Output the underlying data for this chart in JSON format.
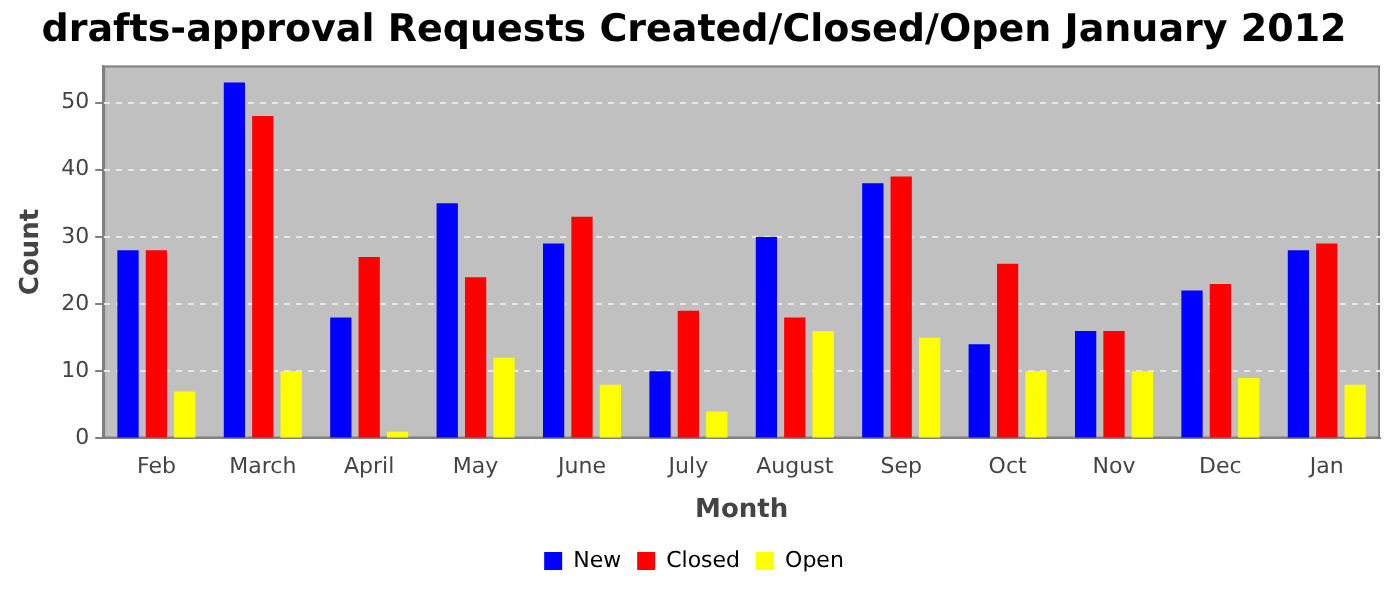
{
  "chart_data": {
    "type": "bar",
    "title": "drafts-approval Requests Created/Closed/Open January 2012",
    "xlabel": "Month",
    "ylabel": "Count",
    "categories": [
      "Feb",
      "March",
      "April",
      "May",
      "June",
      "July",
      "August",
      "Sep",
      "Oct",
      "Nov",
      "Dec",
      "Jan"
    ],
    "series": [
      {
        "name": "New",
        "color": "#0000ff",
        "values": [
          28,
          53,
          18,
          35,
          29,
          10,
          30,
          38,
          14,
          16,
          22,
          28
        ]
      },
      {
        "name": "Closed",
        "color": "#ff0000",
        "values": [
          28,
          48,
          27,
          24,
          33,
          19,
          18,
          39,
          26,
          16,
          23,
          29
        ]
      },
      {
        "name": "Open",
        "color": "#ffff00",
        "values": [
          7,
          10,
          1,
          12,
          8,
          4,
          16,
          15,
          10,
          10,
          9,
          8
        ]
      }
    ],
    "ylim": [
      0,
      55.5
    ],
    "yticks": [
      0,
      10,
      20,
      30,
      40,
      50
    ],
    "grid": "y",
    "legend": "bottom"
  }
}
